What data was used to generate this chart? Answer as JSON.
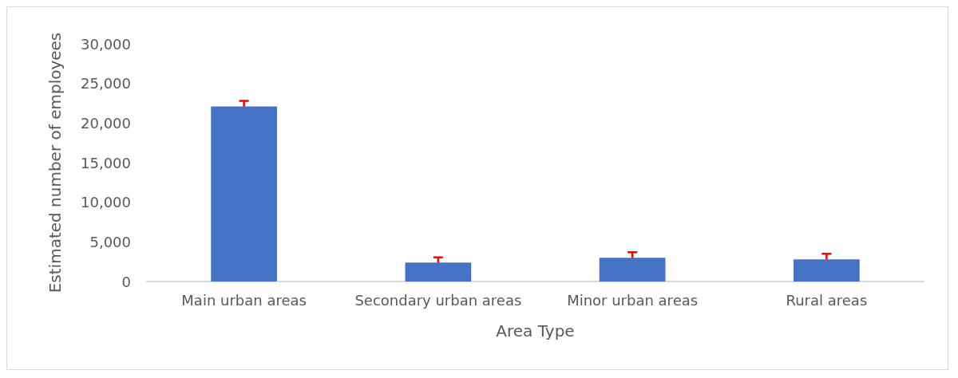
{
  "chart_data": {
    "type": "bar",
    "xlabel": "Area Type",
    "ylabel": "Estimated number of employees",
    "categories": [
      "Main urban areas",
      "Secondary urban areas",
      "Minor urban areas",
      "Rural areas"
    ],
    "values": [
      22100,
      2400,
      3000,
      2800
    ],
    "errors": [
      700,
      650,
      700,
      700
    ],
    "color": "#4472c4",
    "ylim": [
      0,
      30000
    ],
    "yticks": [
      0,
      {
        "value": 5000,
        "label": "5,000"
      },
      {
        "value": 10000,
        "label": "10,000"
      },
      {
        "value": 15000,
        "label": "15,000"
      },
      {
        "value": 20000,
        "label": "20,000"
      },
      {
        "value": 25000,
        "label": "25,000"
      },
      {
        "value": 30000,
        "label": "30,000"
      }
    ],
    "grid": false
  }
}
